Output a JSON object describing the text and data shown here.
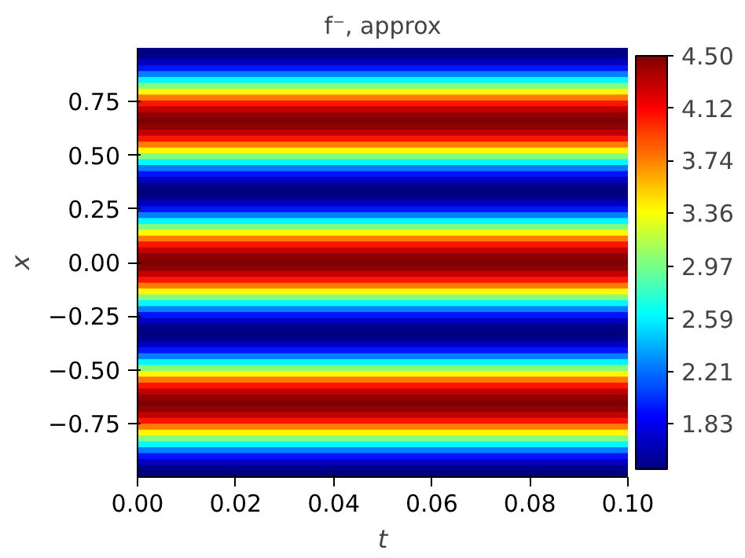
{
  "chart_data": {
    "type": "heatmap",
    "title": "f⁻, approx",
    "xlabel": "t",
    "ylabel": "x",
    "xlim": [
      0,
      0.1
    ],
    "xticks": [
      {
        "value": 0,
        "label": "0.00"
      },
      {
        "value": 0.02,
        "label": "0.02"
      },
      {
        "value": 0.04,
        "label": "0.04"
      },
      {
        "value": 0.06,
        "label": "0.06"
      },
      {
        "value": 0.08,
        "label": "0.08"
      },
      {
        "value": 0.1,
        "label": "0.10"
      }
    ],
    "ylim": [
      -1,
      1
    ],
    "yticks": [
      {
        "value": -0.75,
        "label": "−0.75"
      },
      {
        "value": -0.5,
        "label": "−0.50"
      },
      {
        "value": -0.25,
        "label": "−0.25"
      },
      {
        "value": 0,
        "label": "0.00"
      },
      {
        "value": 0.25,
        "label": "0.25"
      },
      {
        "value": 0.5,
        "label": "0.50"
      },
      {
        "value": 0.75,
        "label": "0.75"
      }
    ],
    "clim": [
      1.5,
      4.5
    ],
    "cticks": [
      1.83,
      2.21,
      2.59,
      2.97,
      3.36,
      3.74,
      4.12,
      {
        "value": 4.5,
        "label": "4.50"
      }
    ],
    "cells": [
      [
        1.5
      ],
      [
        1.55
      ],
      [
        1.7
      ],
      [
        1.94
      ],
      [
        2.25
      ],
      [
        2.61
      ],
      [
        3.0
      ],
      [
        3.39
      ],
      [
        3.75
      ],
      [
        4.06
      ],
      [
        4.3
      ],
      [
        4.45
      ],
      [
        4.5
      ],
      [
        4.45
      ],
      [
        4.3
      ],
      [
        4.06
      ],
      [
        3.75
      ],
      [
        3.39
      ],
      [
        3.0
      ],
      [
        2.61
      ],
      [
        2.25
      ],
      [
        1.94
      ],
      [
        1.7
      ],
      [
        1.55
      ],
      [
        1.5
      ],
      [
        1.55
      ],
      [
        1.7
      ],
      [
        1.94
      ],
      [
        2.25
      ],
      [
        2.61
      ],
      [
        3.0
      ],
      [
        3.39
      ],
      [
        3.75
      ],
      [
        4.06
      ],
      [
        4.3
      ],
      [
        4.45
      ],
      [
        4.5
      ],
      [
        4.45
      ],
      [
        4.3
      ],
      [
        4.06
      ],
      [
        3.75
      ],
      [
        3.39
      ],
      [
        3.0
      ],
      [
        2.61
      ],
      [
        2.25
      ],
      [
        1.94
      ],
      [
        1.7
      ],
      [
        1.55
      ],
      [
        1.5
      ],
      [
        1.55
      ],
      [
        1.7
      ],
      [
        1.94
      ],
      [
        2.25
      ],
      [
        2.61
      ],
      [
        3.0
      ],
      [
        3.39
      ],
      [
        3.75
      ],
      [
        4.06
      ],
      [
        4.3
      ],
      [
        4.45
      ],
      [
        4.5
      ],
      [
        4.45
      ],
      [
        4.3
      ],
      [
        4.06
      ],
      [
        3.75
      ],
      [
        3.39
      ],
      [
        3.0
      ],
      [
        2.61
      ],
      [
        2.25
      ],
      [
        1.94
      ],
      [
        1.7
      ],
      [
        1.55
      ],
      [
        1.5
      ]
    ]
  }
}
